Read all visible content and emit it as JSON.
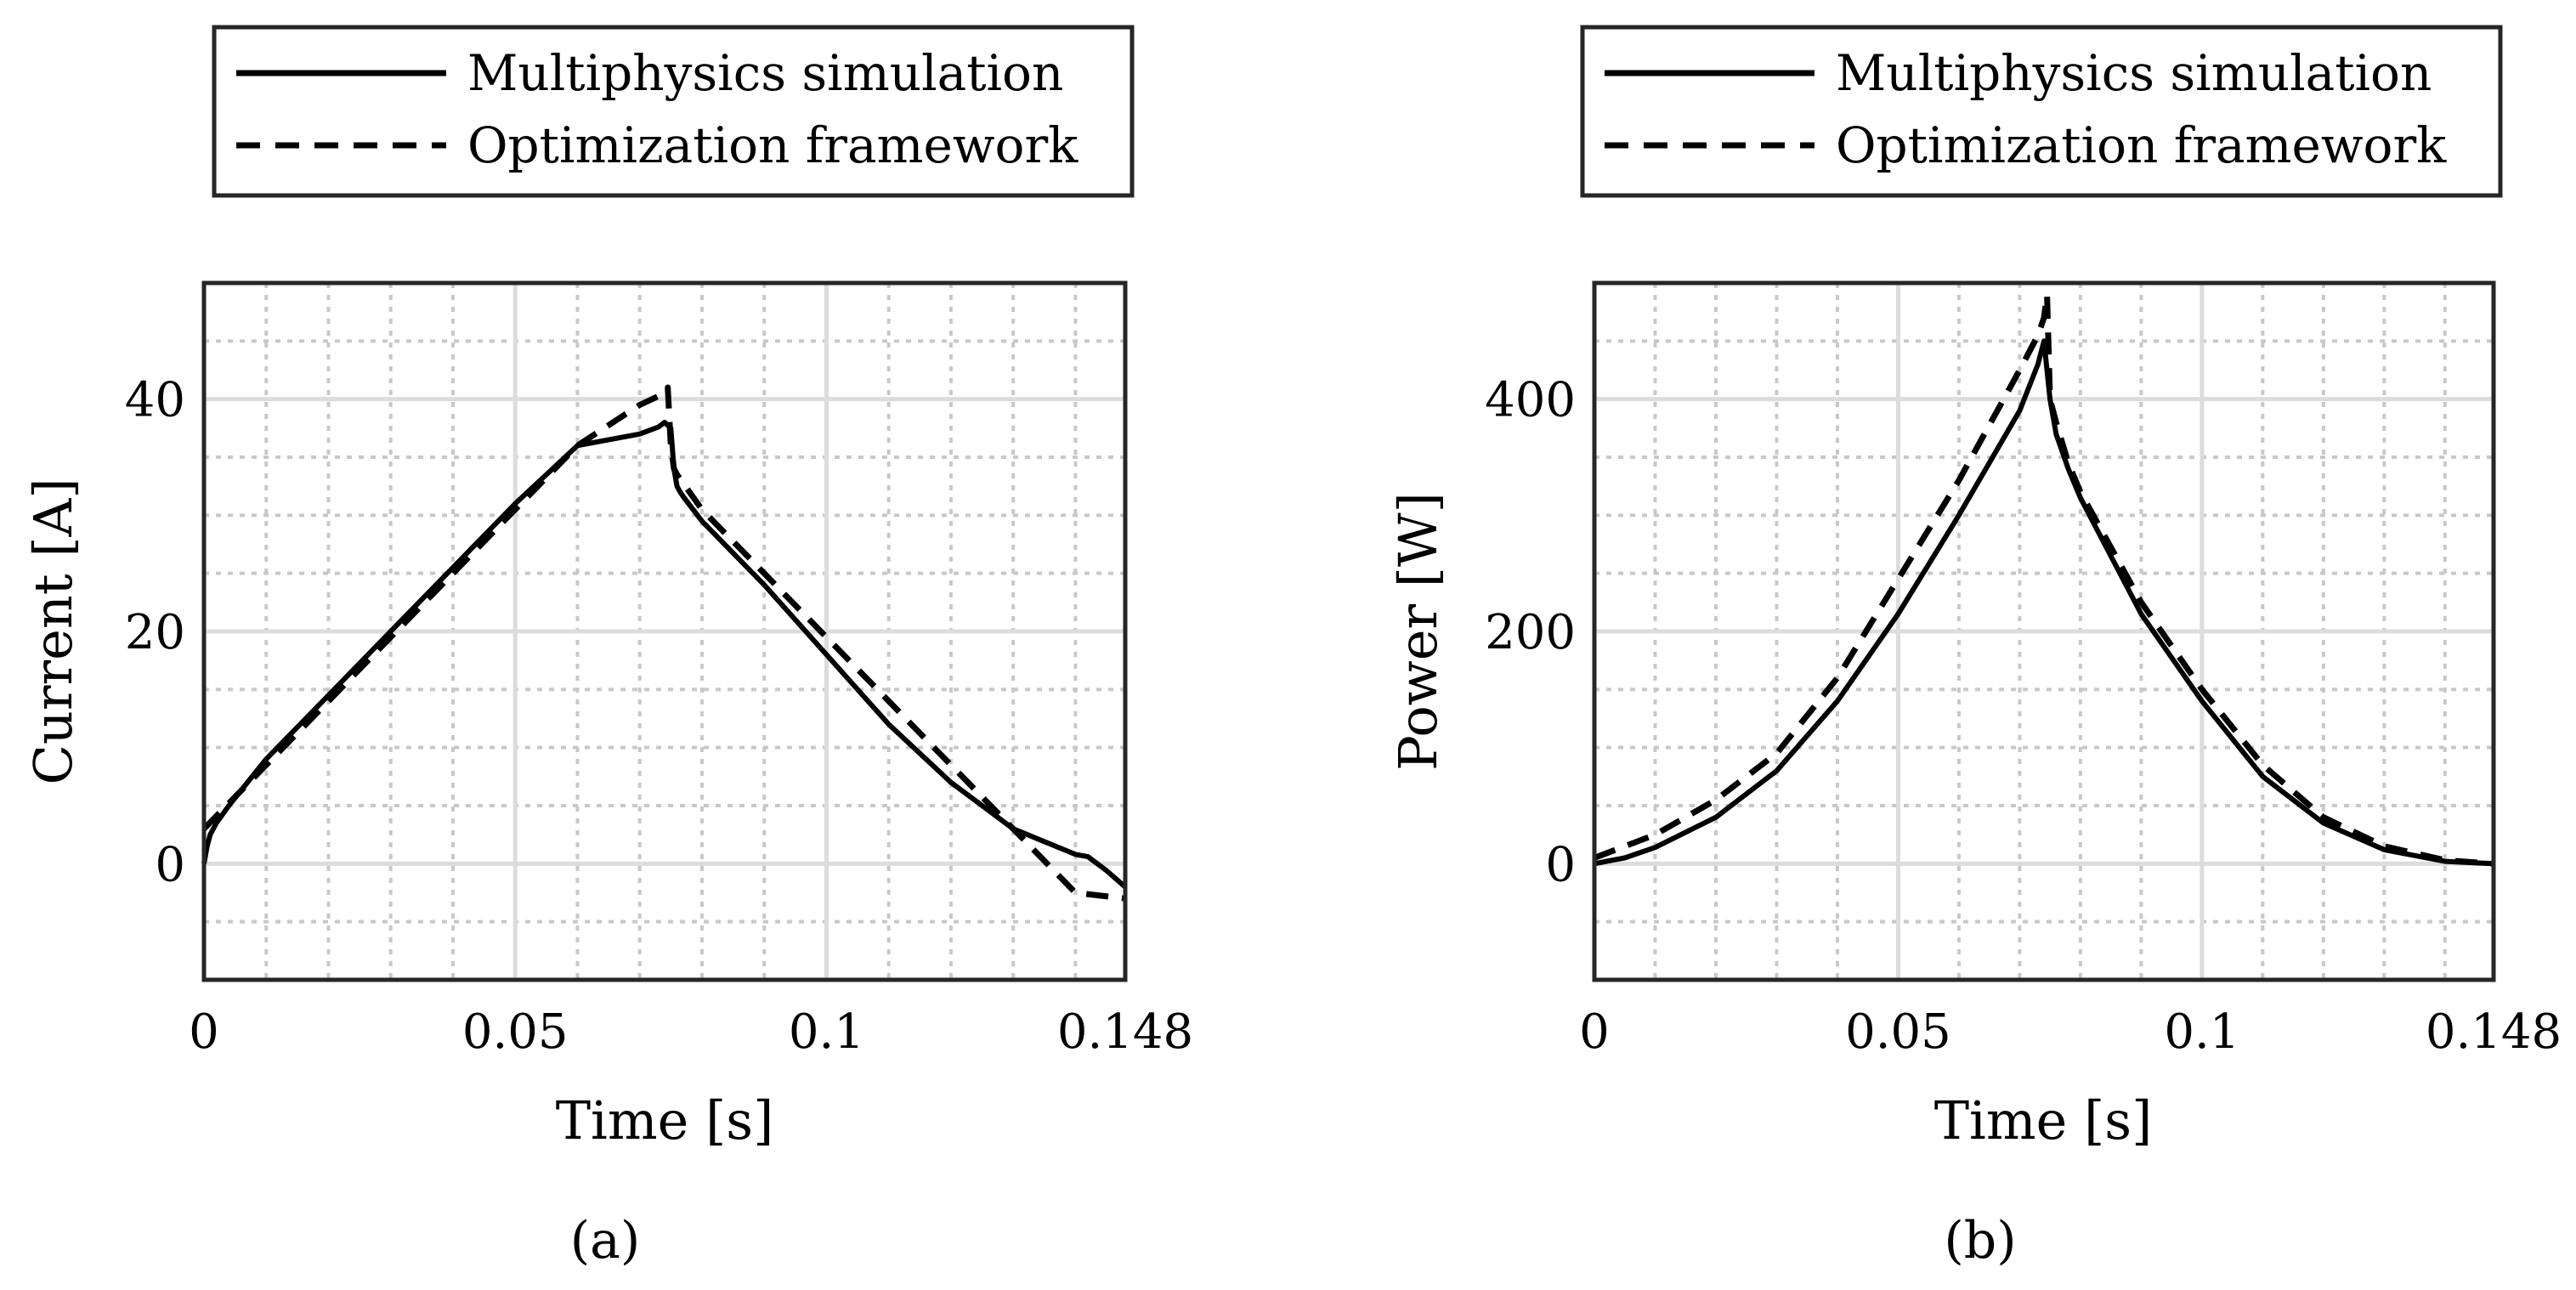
{
  "chart_data": [
    {
      "type": "line",
      "caption": "(a)",
      "xlabel": "Time [s]",
      "ylabel": "Current [A]",
      "xlim": [
        0,
        0.148
      ],
      "ylim": [
        -10,
        50
      ],
      "xticks": [
        0,
        0.05,
        0.1,
        0.148
      ],
      "xtick_labels": [
        "0",
        "0.05",
        "0.1",
        "0.148"
      ],
      "yticks": [
        0,
        20,
        40
      ],
      "ytick_labels": [
        "0",
        "20",
        "40"
      ],
      "grid": true,
      "minor_grid": true,
      "legend_position": "top",
      "legend": [
        "Multiphysics simulation",
        "Optimization framework"
      ],
      "series": [
        {
          "name": "Multiphysics simulation",
          "style": "solid",
          "x": [
            0,
            0.0005,
            0.001,
            0.002,
            0.004,
            0.01,
            0.02,
            0.03,
            0.04,
            0.05,
            0.06,
            0.07,
            0.073,
            0.074,
            0.075,
            0.0755,
            0.076,
            0.0765,
            0.077,
            0.08,
            0.09,
            0.1,
            0.11,
            0.12,
            0.13,
            0.14,
            0.142,
            0.145,
            0.148
          ],
          "y": [
            0,
            1.5,
            2.5,
            3.5,
            5,
            9,
            14.5,
            20,
            25.5,
            31,
            36,
            37,
            37.6,
            38,
            37.5,
            34,
            32.5,
            32,
            31.6,
            29.5,
            24,
            18,
            12,
            7,
            3,
            0.8,
            0.6,
            -0.6,
            -2
          ]
        },
        {
          "name": "Optimization framework",
          "style": "dashed",
          "x": [
            0,
            0.01,
            0.02,
            0.03,
            0.04,
            0.05,
            0.06,
            0.07,
            0.074,
            0.0745,
            0.075,
            0.0755,
            0.076,
            0.078,
            0.08,
            0.09,
            0.1,
            0.11,
            0.12,
            0.13,
            0.14,
            0.148
          ],
          "y": [
            3,
            8.5,
            14,
            19.5,
            25,
            30.5,
            36,
            39.5,
            40.5,
            41,
            36,
            34,
            33.5,
            32,
            30.5,
            25,
            19.5,
            14,
            8.5,
            3,
            -2.5,
            -3
          ]
        }
      ]
    },
    {
      "type": "line",
      "caption": "(b)",
      "xlabel": "Time [s]",
      "ylabel": "Power [W]",
      "xlim": [
        0,
        0.148
      ],
      "ylim": [
        -100,
        500
      ],
      "xticks": [
        0,
        0.05,
        0.1,
        0.148
      ],
      "xtick_labels": [
        "0",
        "0.05",
        "0.1",
        "0.148"
      ],
      "yticks": [
        0,
        200,
        400
      ],
      "ytick_labels": [
        "0",
        "200",
        "400"
      ],
      "grid": true,
      "minor_grid": true,
      "legend_position": "top",
      "legend": [
        "Multiphysics simulation",
        "Optimization framework"
      ],
      "series": [
        {
          "name": "Multiphysics simulation",
          "style": "solid",
          "x": [
            0,
            0.005,
            0.01,
            0.02,
            0.03,
            0.04,
            0.05,
            0.06,
            0.07,
            0.073,
            0.074,
            0.075,
            0.076,
            0.078,
            0.08,
            0.09,
            0.1,
            0.11,
            0.12,
            0.13,
            0.14,
            0.148
          ],
          "y": [
            0,
            5,
            14,
            40,
            80,
            140,
            215,
            300,
            390,
            430,
            450,
            400,
            370,
            340,
            315,
            215,
            140,
            75,
            35,
            12,
            2,
            0
          ]
        },
        {
          "name": "Optimization framework",
          "style": "dashed",
          "x": [
            0,
            0.005,
            0.01,
            0.02,
            0.03,
            0.04,
            0.05,
            0.06,
            0.07,
            0.073,
            0.074,
            0.0745,
            0.075,
            0.076,
            0.078,
            0.08,
            0.09,
            0.1,
            0.11,
            0.12,
            0.13,
            0.14,
            0.148
          ],
          "y": [
            5,
            15,
            25,
            55,
            95,
            160,
            245,
            330,
            425,
            455,
            470,
            490,
            400,
            380,
            345,
            320,
            225,
            150,
            85,
            40,
            15,
            3,
            0
          ]
        }
      ]
    }
  ]
}
